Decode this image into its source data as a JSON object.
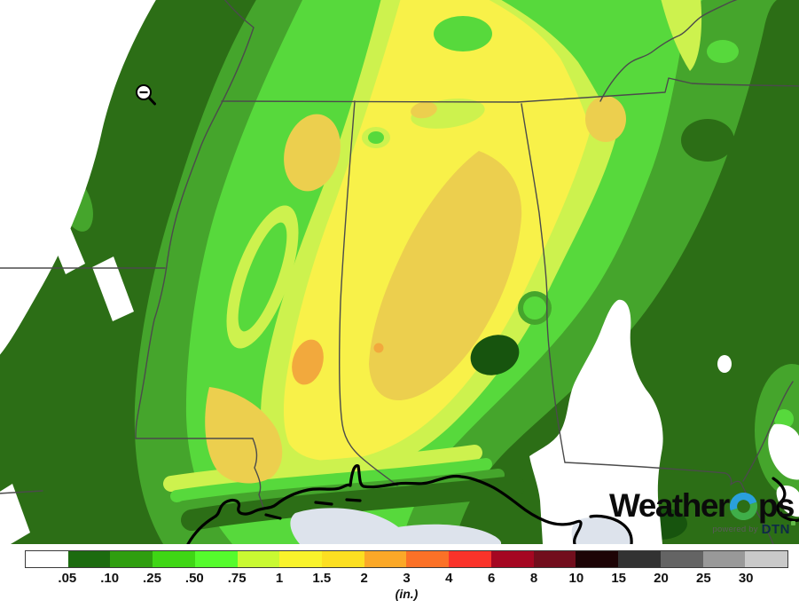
{
  "map": {
    "description": "Precipitation accumulation forecast contour map over Mississippi and Alabama region",
    "cursor_icon": "zoom-out-magnifier",
    "palette": {
      "white": "#ffffff",
      "green_darkest": "#17540e",
      "green_dark": "#2c6e16",
      "green_mid": "#45a52c",
      "green_bright": "#57d93c",
      "yellow_green": "#cdf24e",
      "yellow": "#f8f149",
      "golden": "#eccf4e",
      "orange": "#f2a93d",
      "water": "#dde3ec",
      "state_border": "#4b4b4b",
      "coastline": "#000000"
    }
  },
  "legend": {
    "unit_label": "(in.)",
    "tick_labels": [
      ".05",
      ".10",
      ".25",
      ".50",
      ".75",
      "1",
      "1.5",
      "2",
      "3",
      "4",
      "6",
      "8",
      "10",
      "15",
      "20",
      "25",
      "30"
    ],
    "segment_colors": [
      "#ffffff",
      "#1c6b0f",
      "#2f9e0f",
      "#3fd615",
      "#55fb2d",
      "#c9f932",
      "#f9f32b",
      "#fcdf21",
      "#fba828",
      "#fb7127",
      "#fa332a",
      "#a50722",
      "#720e1d",
      "#1d0406",
      "#323232",
      "#646464",
      "#999999",
      "#c9c9c9"
    ]
  },
  "logo": {
    "brand_left": "Weather",
    "brand_right": "ps",
    "o_top_color": "#2aa0dc",
    "o_bottom_color": "#3fae49",
    "powered_by": "powered by",
    "dtn": "DTN",
    "dtn_color": "#0e2a47",
    "dtn_dot_color": "#62bb46"
  }
}
